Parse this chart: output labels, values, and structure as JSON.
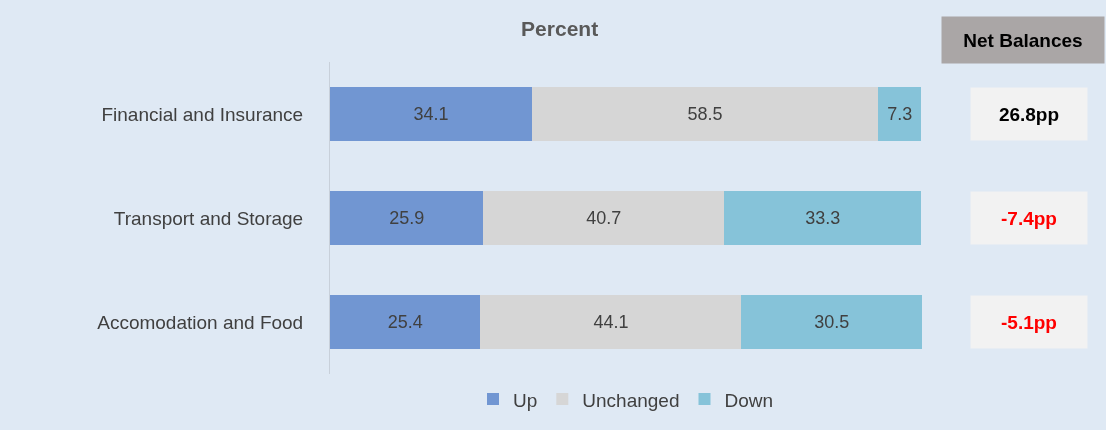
{
  "chart_data": {
    "type": "bar",
    "orientation": "horizontal",
    "stacked": true,
    "title": "Percent",
    "categories": [
      "Financial and Insurance",
      "Transport and Storage",
      "Accomodation and Food"
    ],
    "series": [
      {
        "name": "Up",
        "color": "#7196d2",
        "values": [
          34.1,
          25.9,
          25.4
        ]
      },
      {
        "name": "Unchanged",
        "color": "#d6d6d6",
        "values": [
          58.5,
          40.7,
          44.1
        ]
      },
      {
        "name": "Down",
        "color": "#86c3d9",
        "values": [
          7.3,
          33.3,
          30.5
        ]
      }
    ],
    "xlim": [
      0,
      100
    ],
    "tick_labels": "y",
    "data_labels": true,
    "legend": "bottom",
    "annotations": [
      "Net Balances",
      "26.8pp",
      "-7.4pp",
      "-5.1pp"
    ]
  }
}
